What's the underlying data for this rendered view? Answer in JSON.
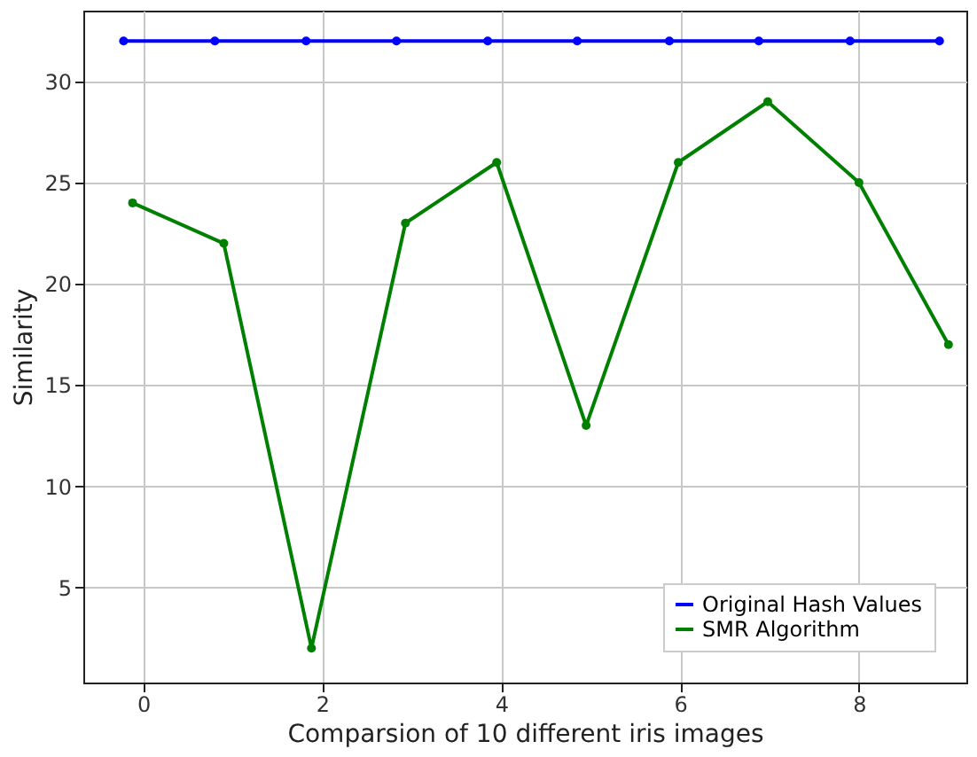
{
  "chart_data": {
    "type": "line",
    "xlabel": "Comparsion of 10 different iris images",
    "ylabel": "Similarity",
    "xlim": [
      -0.67,
      9.2
    ],
    "xticks": [
      0,
      2,
      4,
      6,
      8
    ],
    "ylim": [
      0.3,
      33.5
    ],
    "yticks": [
      5,
      10,
      15,
      20,
      25,
      30
    ],
    "grid": true,
    "legend": "bottom right",
    "marker": "circle",
    "line_style": "solid",
    "series": [
      {
        "name": "Original Hash Values",
        "color": "#0000ff",
        "x": [
          -0.22,
          0.8,
          1.82,
          2.83,
          3.85,
          4.85,
          5.88,
          6.88,
          7.9,
          8.9
        ],
        "values": [
          32,
          32,
          32,
          32,
          32,
          32,
          32,
          32,
          32,
          32
        ]
      },
      {
        "name": "SMR Algorithm",
        "color": "#008000",
        "x": [
          -0.12,
          0.9,
          1.88,
          2.93,
          3.95,
          4.95,
          5.98,
          6.98,
          8.0,
          9.0
        ],
        "values": [
          24,
          22,
          2,
          23,
          26,
          13,
          26,
          29,
          25,
          17
        ]
      }
    ]
  }
}
